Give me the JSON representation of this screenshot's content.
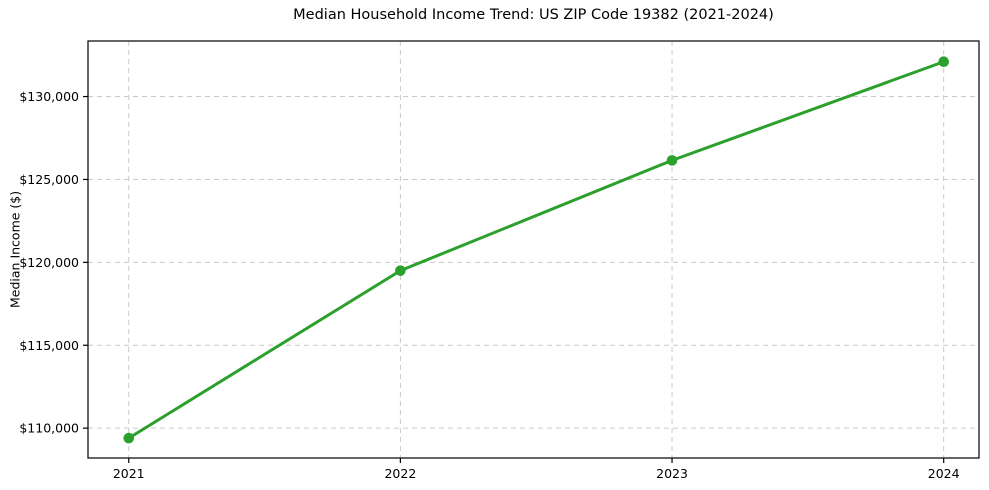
{
  "chart_data": {
    "type": "line",
    "title": "Median Household Income Trend: US ZIP Code 19382 (2021-2024)",
    "ylabel": "Median Income ($)",
    "xlabel": "",
    "x": [
      2021,
      2022,
      2023,
      2024
    ],
    "x_tick_labels": [
      "2021",
      "2022",
      "2023",
      "2024"
    ],
    "series": [
      {
        "name": "Median Household Income",
        "values": [
          109400,
          119500,
          126150,
          132100
        ]
      }
    ],
    "y_ticks": [
      110000,
      115000,
      120000,
      125000,
      130000
    ],
    "y_tick_labels": [
      "$110,000",
      "$115,000",
      "$120,000",
      "$125,000",
      "$130,000"
    ],
    "xlim": [
      2020.85,
      2024.13
    ],
    "ylim": [
      108200,
      133350
    ],
    "grid": true,
    "grid_style": "dashed",
    "legend_position": "none",
    "line_color": "#2ca02c",
    "marker": "circle",
    "grid_color": "#c9c9c9",
    "axis_color": "#000000",
    "background_color": "#ffffff"
  }
}
